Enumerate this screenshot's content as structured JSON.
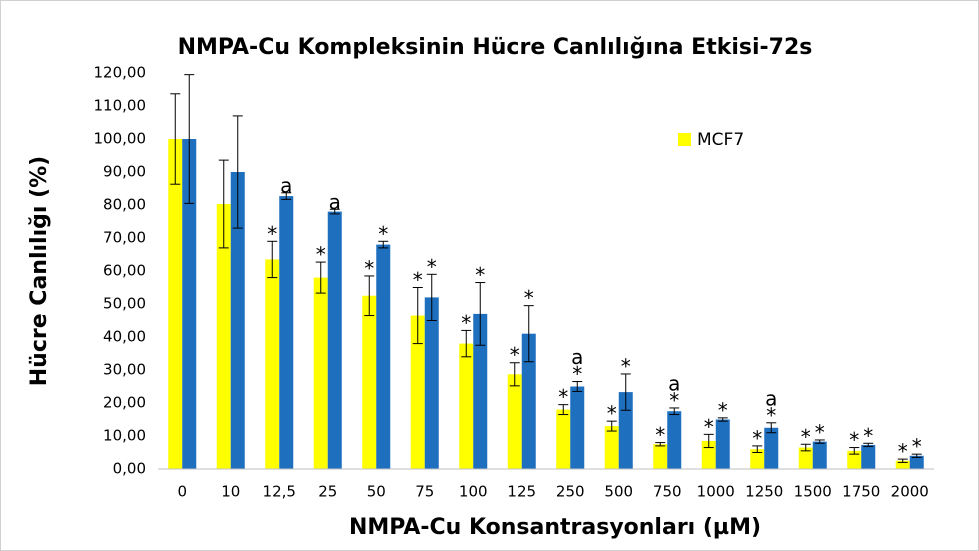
{
  "chart_data": {
    "type": "bar",
    "title": "NMPA-Cu Kompleksinin Hücre Canlılığına Etkisi-72s",
    "x_label": "NMPA-Cu Konsantrasyonları (µM)",
    "y_label": "Hücre Canlılığı (%)",
    "categories": [
      "0",
      "10",
      "12,5",
      "25",
      "50",
      "75",
      "100",
      "125",
      "250",
      "500",
      "750",
      "1000",
      "1250",
      "1500",
      "1750",
      "2000"
    ],
    "series": [
      {
        "name": "MCF7",
        "color": "#ffff00",
        "values": [
          100,
          80.3,
          63.5,
          58,
          52.5,
          46.5,
          38,
          28.7,
          18,
          13,
          7.5,
          8.5,
          6,
          6.5,
          5.5,
          2.5
        ],
        "errors": [
          13.7,
          13.3,
          5.5,
          4.7,
          6,
          8.5,
          4,
          3.5,
          1.5,
          1.5,
          0.5,
          2,
          1,
          1,
          1,
          0.5
        ],
        "annotations": [
          [],
          [],
          [
            "*"
          ],
          [
            "*"
          ],
          [
            "*"
          ],
          [
            "*"
          ],
          [
            "*"
          ],
          [
            "*"
          ],
          [
            "*"
          ],
          [
            "*"
          ],
          [
            "*"
          ],
          [
            "*"
          ],
          [
            "*"
          ],
          [
            "*"
          ],
          [
            "*"
          ],
          [
            "*"
          ]
        ]
      },
      {
        "color": "#1f6fbf",
        "values": [
          100,
          90,
          82.7,
          78,
          68,
          52,
          47,
          41,
          25,
          23.3,
          17.5,
          15,
          12.5,
          8.3,
          7.3,
          4
        ],
        "errors": [
          19.5,
          17,
          1,
          0.7,
          1,
          7,
          9.5,
          8.5,
          1.5,
          5.5,
          1,
          0.5,
          1.5,
          0.5,
          0.5,
          0.5
        ],
        "annotations": [
          [],
          [],
          [
            "a"
          ],
          [
            "a"
          ],
          [
            "*"
          ],
          [
            "*"
          ],
          [
            "*"
          ],
          [
            "*"
          ],
          [
            "a",
            "*"
          ],
          [
            "*"
          ],
          [
            "a",
            "*"
          ],
          [
            "*"
          ],
          [
            "a",
            "*"
          ],
          [
            "*"
          ],
          [
            "*"
          ],
          [
            "*"
          ]
        ]
      }
    ],
    "ylim": [
      0,
      120
    ],
    "yticks": [
      {
        "value": 0,
        "label": "0,00"
      },
      {
        "value": 10,
        "label": "10,00"
      },
      {
        "value": 20,
        "label": "20,00"
      },
      {
        "value": 30,
        "label": "30,00"
      },
      {
        "value": 40,
        "label": "40,00"
      },
      {
        "value": 50,
        "label": "50,00"
      },
      {
        "value": 60,
        "label": "60,00"
      },
      {
        "value": 70,
        "label": "70,00"
      },
      {
        "value": 80,
        "label": "80,00"
      },
      {
        "value": 90,
        "label": "90,00"
      },
      {
        "value": 100,
        "label": "100,00"
      },
      {
        "value": 110,
        "label": "110,00"
      },
      {
        "value": 120,
        "label": "120,00"
      }
    ],
    "grid": false,
    "legend": "upper right"
  }
}
